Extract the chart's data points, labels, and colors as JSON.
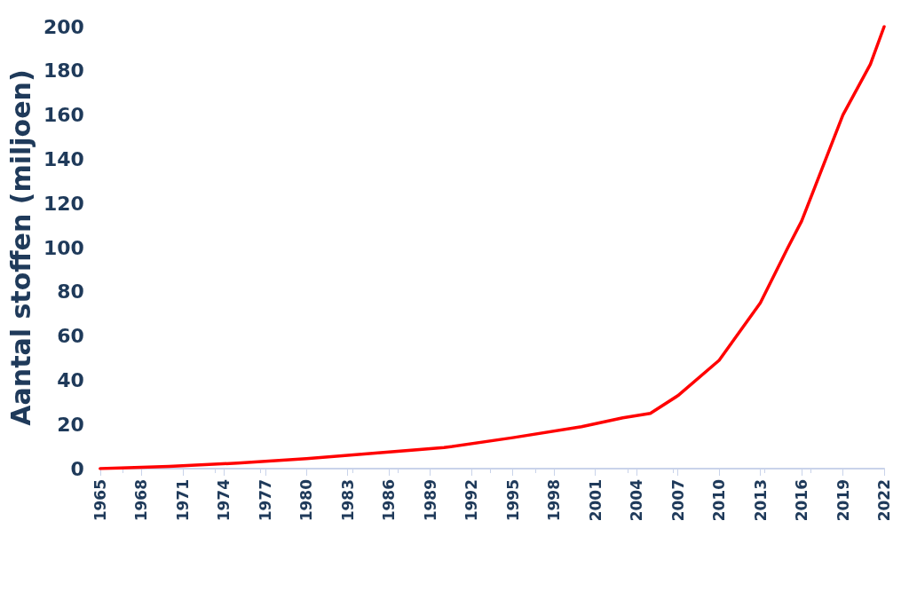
{
  "chart_data": {
    "type": "line",
    "ylabel": "Aantal stoffen (miljoen)",
    "series": [
      {
        "color": "#ff0000",
        "x": [
          1965,
          1967,
          1970,
          1975,
          1980,
          1985,
          1990,
          1995,
          2000,
          2003,
          2005,
          2007,
          2010,
          2013,
          2015,
          2016,
          2017,
          2019,
          2021,
          2022
        ],
        "values": [
          0,
          0.4,
          1,
          2.5,
          4.5,
          7,
          9.5,
          14,
          19,
          23,
          25,
          33,
          49,
          75,
          100,
          112,
          128,
          160,
          183,
          200
        ]
      }
    ],
    "xlim": [
      1965,
      2022
    ],
    "xticks": [
      1965,
      1968,
      1971,
      1974,
      1977,
      1980,
      1983,
      1986,
      1989,
      1992,
      1995,
      1998,
      2001,
      2004,
      2007,
      2010,
      2013,
      2016,
      2019,
      2022
    ],
    "ylim": [
      0,
      200
    ],
    "yticks": [
      0,
      20,
      40,
      60,
      80,
      100,
      120,
      140,
      160,
      180,
      200
    ],
    "grid": false,
    "marker": "none",
    "line_style": "solid"
  }
}
